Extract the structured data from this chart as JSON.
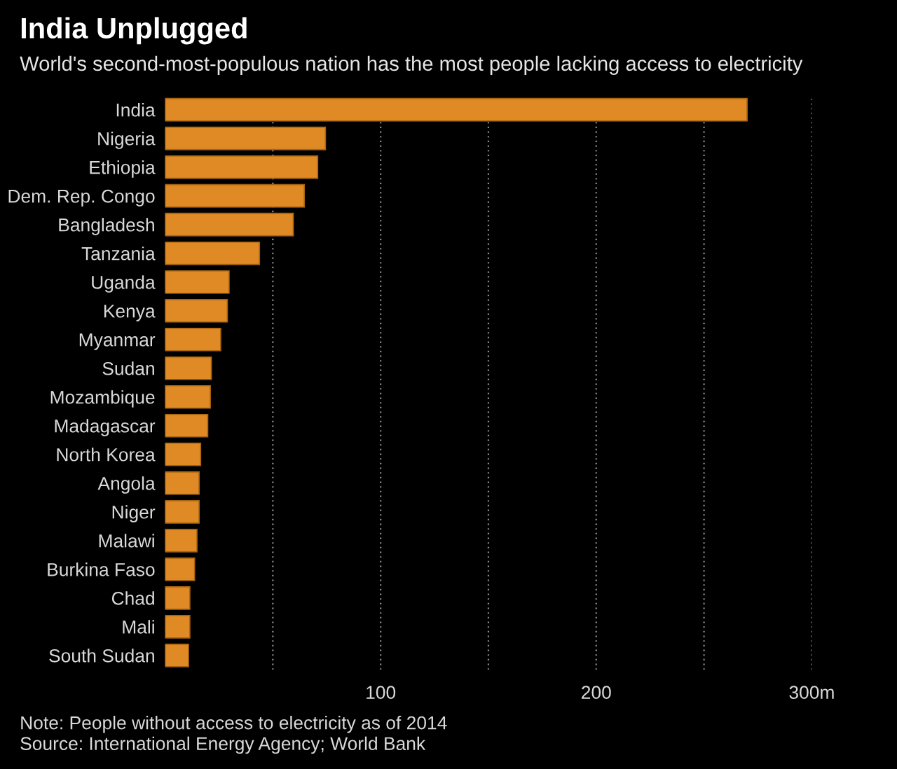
{
  "chart_data": {
    "type": "bar",
    "orientation": "horizontal",
    "title": "India Unplugged",
    "subtitle": "World's second-most-populous nation has the most people lacking access to electricity",
    "categories": [
      "India",
      "Nigeria",
      "Ethiopia",
      "Dem. Rep. Congo",
      "Bangladesh",
      "Tanzania",
      "Uganda",
      "Kenya",
      "Myanmar",
      "Sudan",
      "Mozambique",
      "Madagascar",
      "North Korea",
      "Angola",
      "Niger",
      "Malawi",
      "Burkina Faso",
      "Chad",
      "Mali",
      "South Sudan"
    ],
    "values": [
      270,
      74.4,
      70.8,
      64.6,
      59.5,
      43.8,
      29.7,
      28.9,
      25.8,
      21.5,
      21,
      19.8,
      16.5,
      15.8,
      15.8,
      14.8,
      13.7,
      11.5,
      11.5,
      10.9
    ],
    "color": "#e08a25",
    "xlim": [
      0,
      300
    ],
    "xticks": [
      {
        "value": 50,
        "label": null
      },
      100,
      {
        "value": 150,
        "label": null
      },
      200,
      {
        "value": 250,
        "label": null
      },
      {
        "value": 300,
        "label": "300m"
      }
    ],
    "grid": "x",
    "annotations": [
      "Note: People without access to electricity as of 2014",
      "Source: International Energy Agency; World Bank"
    ]
  }
}
